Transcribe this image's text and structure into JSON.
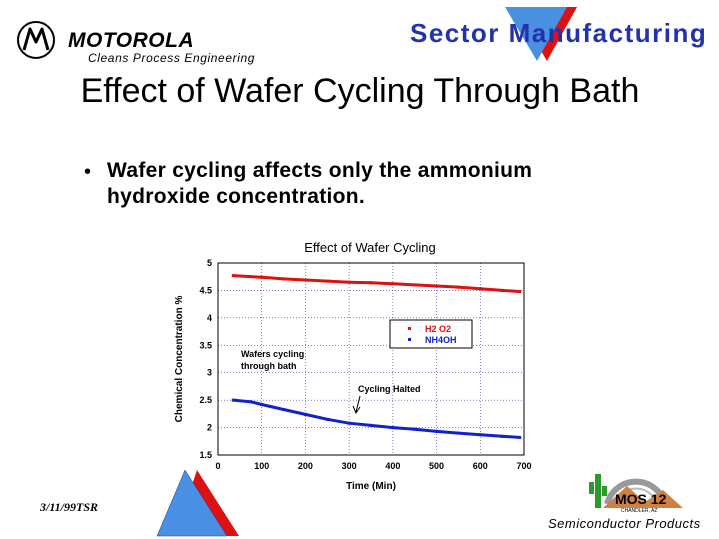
{
  "header": {
    "brand": "MOTOROLA",
    "subbrand": "Cleans  Process  Engineering",
    "sector": "Sector Manufacturing"
  },
  "slide": {
    "title": "Effect of Wafer Cycling Through Bath",
    "bullet": "Wafer cycling affects only the ammonium hydroxide concentration."
  },
  "footer": {
    "date": "3/11/99TSR",
    "division": "Semiconductor  Products",
    "mos_logo": "MOS 12",
    "mos_sub": "CHANDLER, AZ"
  },
  "colors": {
    "h2o2": "#dd1111",
    "nh4oh": "#1122cc",
    "sector": "#2233aa",
    "grid": "#3333aa"
  },
  "chart_data": {
    "type": "line",
    "title": "Effect of Wafer Cycling",
    "xlabel": "Time (Min)",
    "ylabel": "Chemical Concentration %",
    "xlim": [
      0,
      700
    ],
    "ylim": [
      1.5,
      5
    ],
    "xticks": [
      0,
      100,
      200,
      300,
      400,
      500,
      600,
      700
    ],
    "yticks": [
      1.5,
      2,
      2.5,
      3,
      3.5,
      4,
      4.5,
      5
    ],
    "grid": true,
    "legend": "center-right",
    "series": [
      {
        "name": "H2 O2",
        "color": "#dd1111",
        "x": [
          35,
          100,
          150,
          200,
          250,
          300,
          350,
          400,
          450,
          500,
          550,
          600,
          650,
          690
        ],
        "y": [
          4.77,
          4.74,
          4.71,
          4.69,
          4.67,
          4.65,
          4.64,
          4.62,
          4.6,
          4.58,
          4.56,
          4.53,
          4.5,
          4.48
        ]
      },
      {
        "name": "NH4OH",
        "color": "#1122cc",
        "x": [
          35,
          75,
          100,
          150,
          200,
          250,
          300,
          350,
          400,
          450,
          500,
          550,
          600,
          650,
          690
        ],
        "y": [
          2.5,
          2.47,
          2.42,
          2.33,
          2.24,
          2.15,
          2.08,
          2.04,
          2.0,
          1.97,
          1.93,
          1.9,
          1.87,
          1.84,
          1.82
        ]
      }
    ],
    "annotations": [
      {
        "text": "Wafers  cycling through  bath",
        "x": 50,
        "y": 3.3
      },
      {
        "text": "Cycling  Halted",
        "x": 330,
        "y": 2.7
      }
    ]
  }
}
